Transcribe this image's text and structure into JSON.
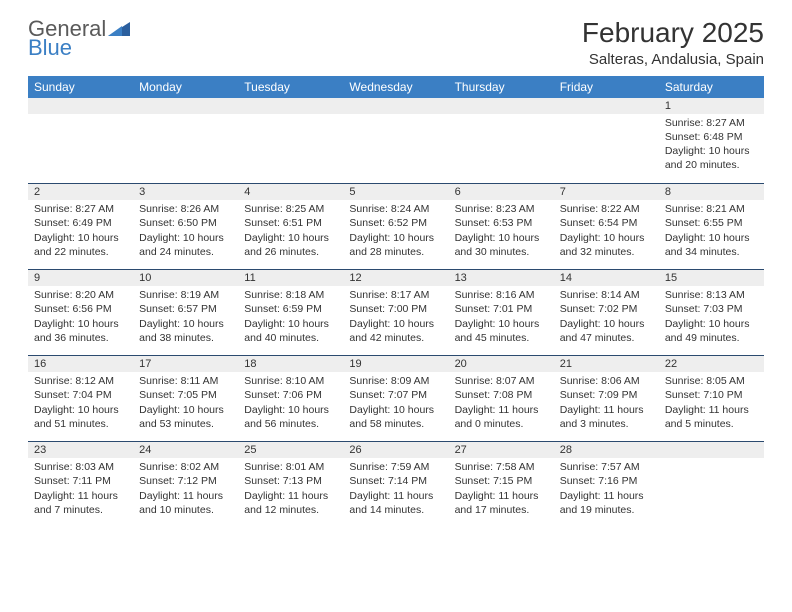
{
  "brand": {
    "word1": "General",
    "word2": "Blue"
  },
  "title": "February 2025",
  "location": "Salteras, Andalusia, Spain",
  "colors": {
    "header_bg": "#3b7fc4",
    "header_text": "#ffffff",
    "daynum_bg": "#eeeeee",
    "rule": "#2b4a6f",
    "text": "#333333",
    "logo_gray": "#5a5a5a",
    "logo_blue": "#3b7fc4"
  },
  "weekdays": [
    "Sunday",
    "Monday",
    "Tuesday",
    "Wednesday",
    "Thursday",
    "Friday",
    "Saturday"
  ],
  "weeks": [
    [
      null,
      null,
      null,
      null,
      null,
      null,
      {
        "n": "1",
        "sunrise": "8:27 AM",
        "sunset": "6:48 PM",
        "dl_h": 10,
        "dl_m": 20
      }
    ],
    [
      {
        "n": "2",
        "sunrise": "8:27 AM",
        "sunset": "6:49 PM",
        "dl_h": 10,
        "dl_m": 22
      },
      {
        "n": "3",
        "sunrise": "8:26 AM",
        "sunset": "6:50 PM",
        "dl_h": 10,
        "dl_m": 24
      },
      {
        "n": "4",
        "sunrise": "8:25 AM",
        "sunset": "6:51 PM",
        "dl_h": 10,
        "dl_m": 26
      },
      {
        "n": "5",
        "sunrise": "8:24 AM",
        "sunset": "6:52 PM",
        "dl_h": 10,
        "dl_m": 28
      },
      {
        "n": "6",
        "sunrise": "8:23 AM",
        "sunset": "6:53 PM",
        "dl_h": 10,
        "dl_m": 30
      },
      {
        "n": "7",
        "sunrise": "8:22 AM",
        "sunset": "6:54 PM",
        "dl_h": 10,
        "dl_m": 32
      },
      {
        "n": "8",
        "sunrise": "8:21 AM",
        "sunset": "6:55 PM",
        "dl_h": 10,
        "dl_m": 34
      }
    ],
    [
      {
        "n": "9",
        "sunrise": "8:20 AM",
        "sunset": "6:56 PM",
        "dl_h": 10,
        "dl_m": 36
      },
      {
        "n": "10",
        "sunrise": "8:19 AM",
        "sunset": "6:57 PM",
        "dl_h": 10,
        "dl_m": 38
      },
      {
        "n": "11",
        "sunrise": "8:18 AM",
        "sunset": "6:59 PM",
        "dl_h": 10,
        "dl_m": 40
      },
      {
        "n": "12",
        "sunrise": "8:17 AM",
        "sunset": "7:00 PM",
        "dl_h": 10,
        "dl_m": 42
      },
      {
        "n": "13",
        "sunrise": "8:16 AM",
        "sunset": "7:01 PM",
        "dl_h": 10,
        "dl_m": 45
      },
      {
        "n": "14",
        "sunrise": "8:14 AM",
        "sunset": "7:02 PM",
        "dl_h": 10,
        "dl_m": 47
      },
      {
        "n": "15",
        "sunrise": "8:13 AM",
        "sunset": "7:03 PM",
        "dl_h": 10,
        "dl_m": 49
      }
    ],
    [
      {
        "n": "16",
        "sunrise": "8:12 AM",
        "sunset": "7:04 PM",
        "dl_h": 10,
        "dl_m": 51
      },
      {
        "n": "17",
        "sunrise": "8:11 AM",
        "sunset": "7:05 PM",
        "dl_h": 10,
        "dl_m": 53
      },
      {
        "n": "18",
        "sunrise": "8:10 AM",
        "sunset": "7:06 PM",
        "dl_h": 10,
        "dl_m": 56
      },
      {
        "n": "19",
        "sunrise": "8:09 AM",
        "sunset": "7:07 PM",
        "dl_h": 10,
        "dl_m": 58
      },
      {
        "n": "20",
        "sunrise": "8:07 AM",
        "sunset": "7:08 PM",
        "dl_h": 11,
        "dl_m": 0
      },
      {
        "n": "21",
        "sunrise": "8:06 AM",
        "sunset": "7:09 PM",
        "dl_h": 11,
        "dl_m": 3
      },
      {
        "n": "22",
        "sunrise": "8:05 AM",
        "sunset": "7:10 PM",
        "dl_h": 11,
        "dl_m": 5
      }
    ],
    [
      {
        "n": "23",
        "sunrise": "8:03 AM",
        "sunset": "7:11 PM",
        "dl_h": 11,
        "dl_m": 7
      },
      {
        "n": "24",
        "sunrise": "8:02 AM",
        "sunset": "7:12 PM",
        "dl_h": 11,
        "dl_m": 10
      },
      {
        "n": "25",
        "sunrise": "8:01 AM",
        "sunset": "7:13 PM",
        "dl_h": 11,
        "dl_m": 12
      },
      {
        "n": "26",
        "sunrise": "7:59 AM",
        "sunset": "7:14 PM",
        "dl_h": 11,
        "dl_m": 14
      },
      {
        "n": "27",
        "sunrise": "7:58 AM",
        "sunset": "7:15 PM",
        "dl_h": 11,
        "dl_m": 17
      },
      {
        "n": "28",
        "sunrise": "7:57 AM",
        "sunset": "7:16 PM",
        "dl_h": 11,
        "dl_m": 19
      },
      null
    ]
  ],
  "labels": {
    "sunrise": "Sunrise:",
    "sunset": "Sunset:",
    "daylight": "Daylight:",
    "hours": "hours",
    "and": "and",
    "minutes": "minutes."
  }
}
